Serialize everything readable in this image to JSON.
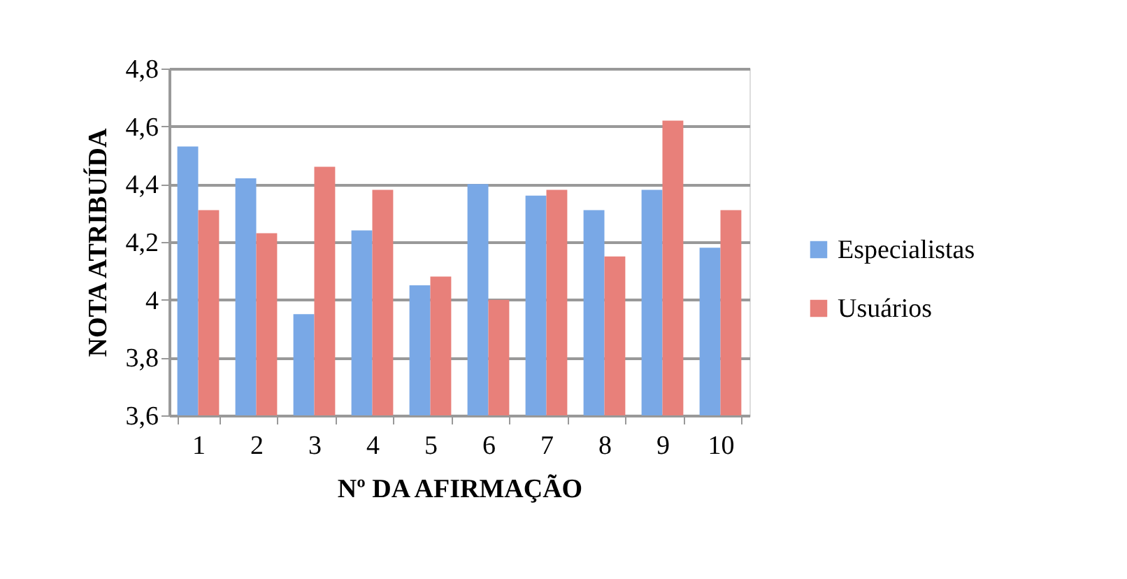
{
  "chart_data": {
    "type": "bar",
    "xlabel": "Nº DA AFIRMAÇÃO",
    "ylabel": "NOTA ATRIBUÍDA",
    "categories": [
      "1",
      "2",
      "3",
      "4",
      "5",
      "6",
      "7",
      "8",
      "9",
      "10"
    ],
    "series": [
      {
        "name": "Especialistas",
        "color": "#79a8e6",
        "values": [
          4.53,
          4.42,
          3.95,
          4.24,
          4.05,
          4.4,
          4.36,
          4.31,
          4.38,
          4.18
        ]
      },
      {
        "name": "Usuários",
        "color": "#e8807a",
        "values": [
          4.31,
          4.23,
          4.46,
          4.38,
          4.08,
          4.0,
          4.38,
          4.15,
          4.62,
          4.31
        ]
      }
    ],
    "ylim": [
      3.6,
      4.8
    ],
    "yticks": [
      {
        "value": 3.6,
        "label": "3,6"
      },
      {
        "value": 3.8,
        "label": "3,8"
      },
      {
        "value": 4,
        "label": "4"
      },
      {
        "value": 4.2,
        "label": "4,2"
      },
      {
        "value": 4.4,
        "label": "4,4"
      },
      {
        "value": 4.6,
        "label": "4,6"
      },
      {
        "value": 4.8,
        "label": "4,8"
      }
    ],
    "grid": "y",
    "legend": "right"
  }
}
